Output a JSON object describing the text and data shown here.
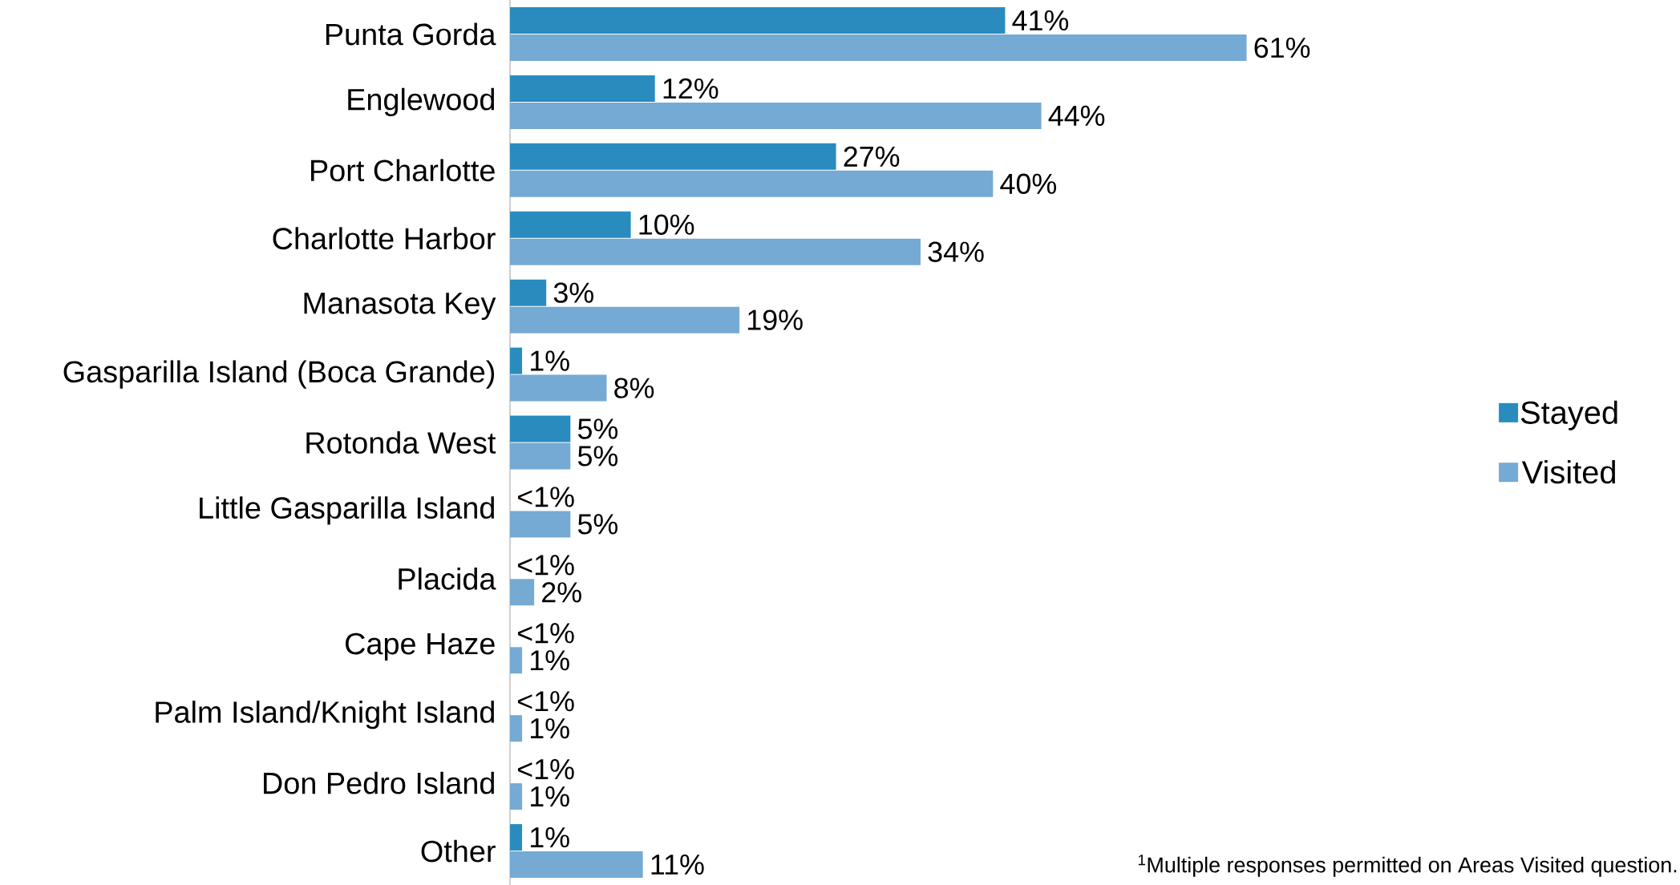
{
  "chart_data": {
    "type": "bar",
    "orientation": "horizontal",
    "categories": [
      "Punta Gorda",
      "Englewood",
      "Port Charlotte",
      "Charlotte Harbor",
      "Manasota Key",
      "Gasparilla Island (Boca Grande)",
      "Rotonda West",
      "Little Gasparilla Island",
      "Placida",
      "Cape Haze",
      "Palm Island/Knight Island",
      "Don Pedro Island",
      "Other"
    ],
    "series": [
      {
        "name": "Stayed",
        "color": "#2a8bbf",
        "values": [
          41,
          12,
          27,
          10,
          3,
          1,
          5,
          0,
          0,
          0,
          0,
          0,
          1
        ],
        "value_labels": [
          "41%",
          "12%",
          "27%",
          "10%",
          "3%",
          "1%",
          "5%",
          "<1%",
          "<1%",
          "<1%",
          "<1%",
          "<1%",
          "1%"
        ]
      },
      {
        "name": "Visited",
        "color": "#74aad4",
        "values": [
          61,
          44,
          40,
          34,
          19,
          8,
          5,
          5,
          2,
          1,
          1,
          1,
          11
        ],
        "value_labels": [
          "61%",
          "44%",
          "40%",
          "34%",
          "19%",
          "8%",
          "5%",
          "5%",
          "2%",
          "1%",
          "1%",
          "1%",
          "11%"
        ]
      }
    ],
    "legend": "right",
    "annotations": [
      "$^{1}$Multiple responses permitted on Areas Visited question."
    ]
  }
}
